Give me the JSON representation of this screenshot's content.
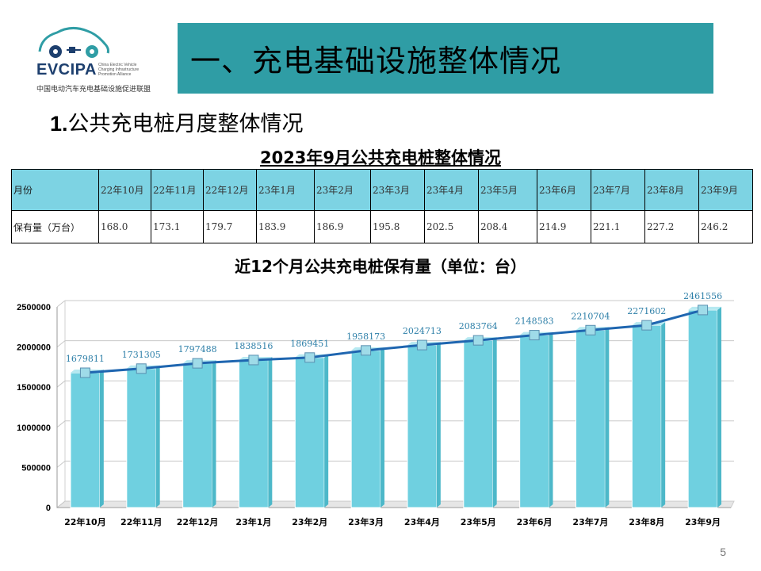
{
  "logo": {
    "name": "EVCIPA",
    "tagline": "China Electric Vehicle Charging Infrastructure Promotion Alliance",
    "chinese_name": "中国电动汽车充电基础设施促进联盟"
  },
  "header": {
    "title": "一、充电基础设施整体情况"
  },
  "section": {
    "number": "1.",
    "title": "公共充电桩月度整体情况"
  },
  "table": {
    "title": "2023年9月公共充电桩整体情况",
    "row_labels": {
      "month": "月份",
      "count": "保有量（万台）"
    },
    "months": [
      "22年10月",
      "22年11月",
      "22年12月",
      "23年1月",
      "23年2月",
      "23年3月",
      "23年4月",
      "23年5月",
      "23年6月",
      "23年7月",
      "23年8月",
      "23年9月"
    ],
    "values": [
      "168.0",
      "173.1",
      "179.7",
      "183.9",
      "186.9",
      "195.8",
      "202.5",
      "208.4",
      "214.9",
      "221.1",
      "227.2",
      "246.2"
    ]
  },
  "chart_data": {
    "type": "bar",
    "title": "近12个月公共充电桩保有量（单位：台）",
    "categories": [
      "22年10月",
      "22年11月",
      "22年12月",
      "23年1月",
      "23年2月",
      "23年3月",
      "23年4月",
      "23年5月",
      "23年6月",
      "23年7月",
      "23年8月",
      "23年9月"
    ],
    "values": [
      1679811,
      1731305,
      1797488,
      1838516,
      1869451,
      1958173,
      2024713,
      2083764,
      2148583,
      2210704,
      2271602,
      2461556
    ],
    "overlay_line": true,
    "ylim": [
      0,
      2500000
    ],
    "yticks": [
      0,
      500000,
      1000000,
      1500000,
      2000000,
      2500000
    ],
    "grid": true,
    "colors": {
      "bar": "#6fd0e0",
      "line": "#1f66b0",
      "marker": "#9fdbe8"
    }
  },
  "footer": {
    "page_number": "5"
  }
}
